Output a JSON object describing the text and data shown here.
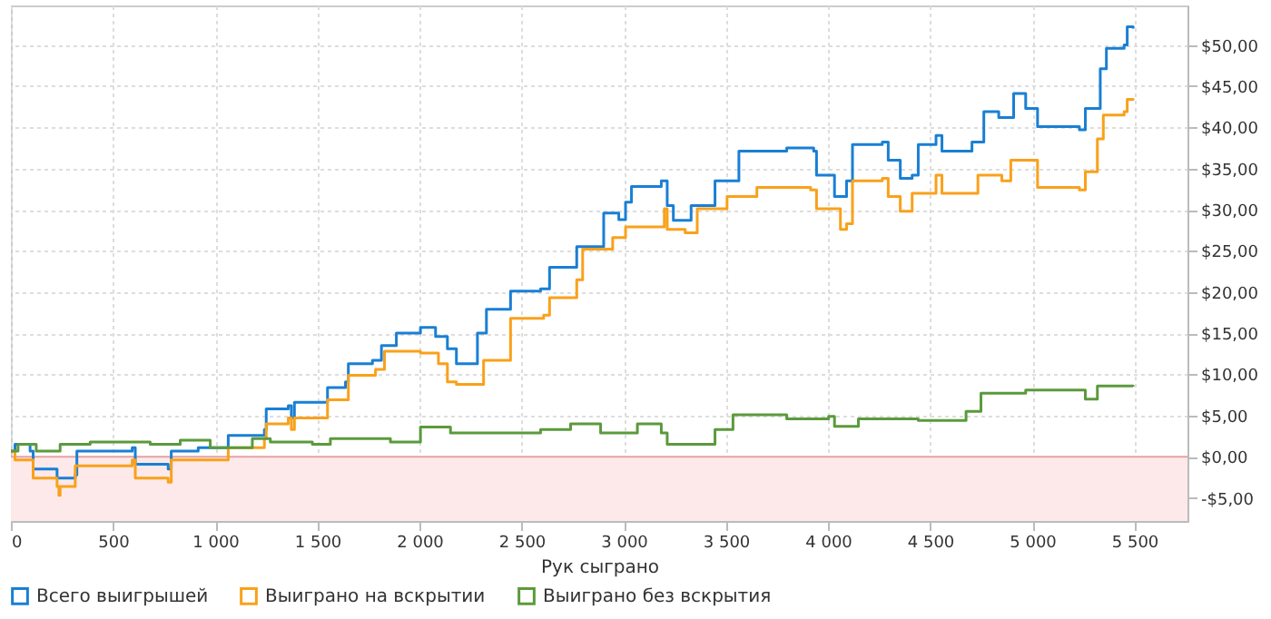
{
  "chart_data": {
    "type": "step",
    "xlabel": "Рук сыграно",
    "xlim": [
      0,
      5760
    ],
    "ylim": [
      -7.8,
      54.8
    ],
    "xticks": [
      0,
      500,
      {
        "value": 1000,
        "label": "1 000"
      },
      {
        "value": 1500,
        "label": "1 500"
      },
      {
        "value": 2000,
        "label": "2 000"
      },
      {
        "value": 2500,
        "label": "2 500"
      },
      {
        "value": 3000,
        "label": "3 000"
      },
      {
        "value": 3500,
        "label": "3 500"
      },
      {
        "value": 4000,
        "label": "4 000"
      },
      {
        "value": 4500,
        "label": "4 500"
      },
      {
        "value": 5000,
        "label": "5 000"
      },
      {
        "value": 5500,
        "label": "5 500"
      }
    ],
    "yticks": [
      {
        "value": -5,
        "label": "-$5,00"
      },
      {
        "value": 0,
        "label": "$0,00"
      },
      {
        "value": 5,
        "label": "$5,00"
      },
      {
        "value": 10,
        "label": "$10,00"
      },
      {
        "value": 15,
        "label": "$15,00"
      },
      {
        "value": 20,
        "label": "$20,00"
      },
      {
        "value": 25,
        "label": "$25,00"
      },
      {
        "value": 30,
        "label": "$30,00"
      },
      {
        "value": 35,
        "label": "$35,00"
      },
      {
        "value": 40,
        "label": "$40,00"
      },
      {
        "value": 45,
        "label": "$45,00"
      },
      {
        "value": 50,
        "label": "$50,00"
      }
    ],
    "grid": true,
    "legend": "bottom",
    "line_style": "solid",
    "bands": [
      {
        "axis": "y",
        "from": -7.8,
        "to": 0,
        "color": "#fde9e9"
      }
    ],
    "ref_lines": [
      {
        "axis": "y",
        "value": 0,
        "color": "#e3a3a3"
      }
    ],
    "series": [
      {
        "name": "Всего выигрышей",
        "color": "#1a7fd4",
        "x": [
          0,
          20,
          94,
          109,
          226,
          315,
          323,
          594,
          609,
          770,
          785,
          917,
          1064,
          1241,
          1250,
          1358,
          1373,
          1388,
          1550,
          1638,
          1652,
          1770,
          1814,
          1887,
          2005,
          2079,
          2137,
          2181,
          2270,
          2284,
          2328,
          2446,
          2593,
          2637,
          2770,
          2902,
          2976,
          3009,
          3038,
          3184,
          3213,
          3243,
          3301,
          3330,
          3447,
          3564,
          3798,
          3930,
          3944,
          4032,
          4091,
          4120,
          4266,
          4295,
          4354,
          4412,
          4442,
          4529,
          4558,
          4705,
          4763,
          4836,
          4909,
          4968,
          5026,
          5231,
          5260,
          5333,
          5363,
          5450,
          5465,
          5494
        ],
        "values": [
          0.7,
          1.5,
          0.7,
          -1.5,
          -2.6,
          -2.2,
          0.7,
          1.1,
          -0.9,
          -1.5,
          0.7,
          1.1,
          2.6,
          3.3,
          5.8,
          6.2,
          4.7,
          6.6,
          8.4,
          9.1,
          11.3,
          11.7,
          13.5,
          15,
          15.7,
          14.6,
          13.1,
          11.3,
          11.3,
          15,
          17.9,
          20.1,
          20.4,
          23,
          25.5,
          29.6,
          28.8,
          30.9,
          32.8,
          33.5,
          30.5,
          28.7,
          28.7,
          30.5,
          33.5,
          37.1,
          37.5,
          37.1,
          34.2,
          31.6,
          33.5,
          37.9,
          38.2,
          36,
          33.8,
          34.2,
          37.9,
          39,
          37.1,
          38.2,
          41.9,
          41.2,
          44.1,
          42.3,
          40.1,
          39.7,
          42.3,
          47.1,
          49.6,
          50,
          52.2,
          52
        ]
      },
      {
        "name": "Выиграно на вскрытии",
        "color": "#f9a11b",
        "x": [
          0,
          20,
          109,
          226,
          235,
          241,
          315,
          594,
          609,
          770,
          785,
          1064,
          1241,
          1250,
          1358,
          1373,
          1388,
          1550,
          1652,
          1785,
          1829,
          2005,
          2093,
          2137,
          2181,
          2284,
          2314,
          2446,
          2608,
          2637,
          2770,
          2799,
          2946,
          3009,
          3199,
          3213,
          3301,
          3360,
          3506,
          3652,
          3915,
          3944,
          4047,
          4061,
          4091,
          4120,
          4266,
          4295,
          4354,
          4412,
          4529,
          4558,
          4734,
          4851,
          4895,
          4953,
          5026,
          5231,
          5260,
          5319,
          5348,
          5450,
          5465,
          5494
        ],
        "values": [
          0.7,
          -0.4,
          -2.6,
          -3.6,
          -4.7,
          -3.6,
          -1.1,
          -0.4,
          -2.6,
          -3.1,
          -0.4,
          1.1,
          2.2,
          4,
          4.7,
          3.3,
          4.7,
          6.9,
          9.9,
          10.6,
          12.8,
          12.6,
          11.3,
          9.1,
          8.8,
          8.8,
          11.7,
          16.8,
          17.2,
          19.3,
          21.5,
          25.2,
          26.6,
          27.9,
          30.1,
          27.6,
          27.2,
          30.1,
          31.6,
          32.7,
          32.4,
          30.1,
          30.1,
          27.6,
          28.3,
          33.5,
          33.8,
          31.6,
          29.8,
          32,
          34.2,
          32,
          34.2,
          33.5,
          36,
          36,
          32.7,
          32.4,
          34.6,
          38.6,
          41.5,
          41.9,
          43.4,
          43.5
        ]
      },
      {
        "name": "Выиграно без вскрытия",
        "color": "#5b9a3c",
        "x": [
          0,
          35,
          124,
          241,
          388,
          682,
          829,
          976,
          1182,
          1270,
          1476,
          1564,
          1858,
          2005,
          2152,
          2446,
          2593,
          2740,
          2887,
          3009,
          3067,
          3184,
          3213,
          3360,
          3447,
          3535,
          3798,
          4003,
          4032,
          4149,
          4442,
          4676,
          4749,
          4968,
          5260,
          5319,
          5494
        ],
        "values": [
          0.7,
          1.5,
          0.7,
          1.5,
          1.8,
          1.5,
          2,
          1.1,
          2.2,
          1.8,
          1.5,
          2.2,
          1.8,
          3.6,
          2.9,
          2.9,
          3.3,
          4,
          2.9,
          2.9,
          4,
          2.9,
          1.5,
          1.5,
          3.3,
          5.1,
          4.6,
          4.9,
          3.7,
          4.6,
          4.4,
          5.5,
          7.7,
          8.1,
          7,
          8.6,
          8.5
        ]
      }
    ]
  }
}
